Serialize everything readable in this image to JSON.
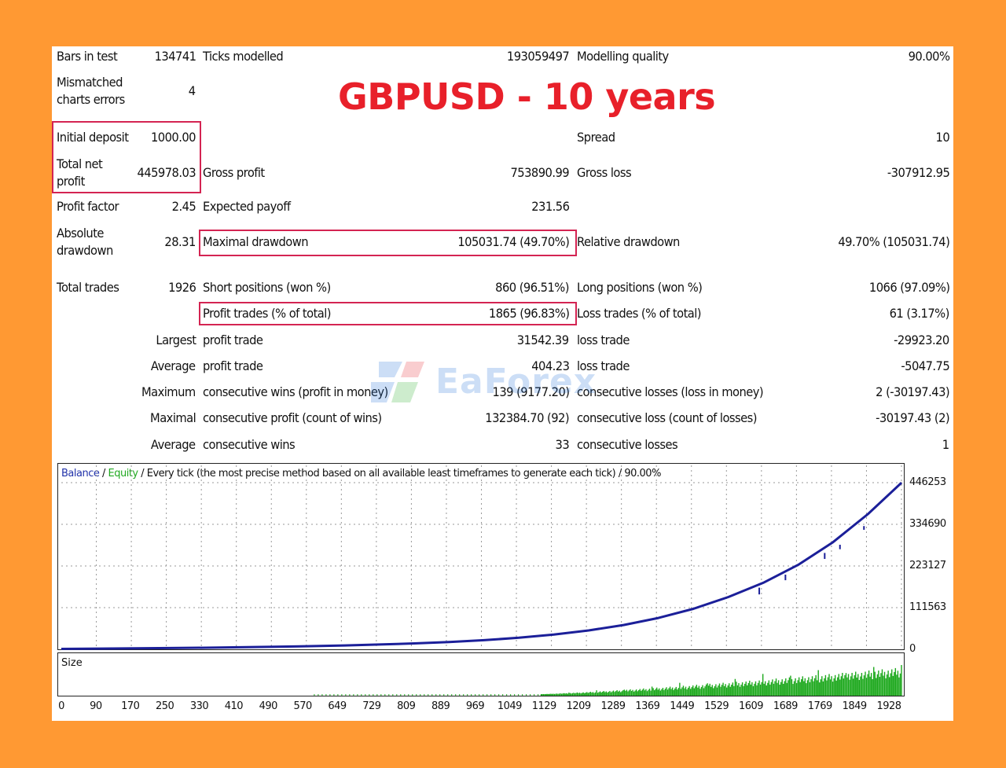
{
  "report": {
    "title": "GBPUSD - 10 years",
    "rows": [
      {
        "l1": "Bars in test",
        "v1": "134741",
        "l2": "Ticks modelled",
        "v2": "193059497",
        "l3": "Modelling quality",
        "v3": "90.00%"
      },
      {
        "l1a": "Mismatched",
        "l1b": "charts errors",
        "v1": "4"
      },
      {
        "l1": "Initial deposit",
        "v1": "1000.00",
        "l3": "Spread",
        "v3": "10"
      },
      {
        "l1a": "Total net",
        "l1b": "profit",
        "v1": "445978.03",
        "l2": "Gross profit",
        "v2": "753890.99",
        "l3": "Gross loss",
        "v3": "-307912.95"
      },
      {
        "l1": "Profit factor",
        "v1": "2.45",
        "l2": "Expected payoff",
        "v2": "231.56"
      },
      {
        "l1a": "Absolute",
        "l1b": "drawdown",
        "v1": "28.31",
        "l2": "Maximal drawdown",
        "v2": "105031.74 (49.70%)",
        "l3": "Relative drawdown",
        "v3": "49.70% (105031.74)"
      },
      {
        "l1": "Total trades",
        "v1": "1926",
        "l2": "Short positions (won %)",
        "v2": "860 (96.51%)",
        "l3": "Long positions (won %)",
        "v3": "1066 (97.09%)"
      },
      {
        "l2": "Profit trades (% of total)",
        "v2": "1865 (96.83%)",
        "l3": "Loss trades (% of total)",
        "v3": "61 (3.17%)"
      },
      {
        "v1": "Largest",
        "l2": "profit trade",
        "v2": "31542.39",
        "l3": "loss trade",
        "v3": "-29923.20"
      },
      {
        "v1": "Average",
        "l2": "profit trade",
        "v2": "404.23",
        "l3": "loss trade",
        "v3": "-5047.75"
      },
      {
        "v1": "Maximum",
        "l2": "consecutive wins (profit in money)",
        "v2": "139 (9177.20)",
        "l3": "consecutive losses (loss in money)",
        "v3": "2 (-30197.43)"
      },
      {
        "v1": "Maximal",
        "l2": "consecutive profit (count of wins)",
        "v2": "132384.70 (92)",
        "l3": "consecutive loss (count of losses)",
        "v3": "-30197.43 (2)"
      },
      {
        "v1": "Average",
        "l2": "consecutive wins",
        "v2": "33",
        "l3": "consecutive losses",
        "v3": "1"
      }
    ]
  },
  "watermark": {
    "text": "EaForex"
  },
  "chart_data": {
    "type": "line",
    "legend": {
      "balance": "Balance",
      "sep1": " / ",
      "equity": "Equity",
      "rest": " / Every tick (the most precise method based on all available least timeframes to generate each tick) / 90.00%"
    },
    "colors": {
      "balance": "#1B1F99",
      "equity": "#22AA22",
      "size": "#1CA81C",
      "grid": "#9A9A9A"
    },
    "y_ticks": [
      "446253",
      "334690",
      "223127",
      "111563",
      "0"
    ],
    "ylim": [
      0,
      446253
    ],
    "x_ticks": [
      "0",
      "90",
      "170",
      "250",
      "330",
      "410",
      "490",
      "570",
      "649",
      "729",
      "809",
      "889",
      "969",
      "1049",
      "1129",
      "1209",
      "1289",
      "1369",
      "1449",
      "1529",
      "1609",
      "1689",
      "1769",
      "1849",
      "1928"
    ],
    "xlim": [
      0,
      1926
    ],
    "size_label": "Size",
    "balance": {
      "x": [
        0,
        90,
        170,
        250,
        330,
        410,
        490,
        570,
        649,
        729,
        809,
        889,
        969,
        1049,
        1129,
        1209,
        1289,
        1369,
        1449,
        1529,
        1609,
        1689,
        1769,
        1849,
        1926
      ],
      "y": [
        1000,
        1800,
        2600,
        3400,
        4300,
        5400,
        6800,
        8400,
        10300,
        12800,
        15800,
        19500,
        24500,
        31000,
        39500,
        50500,
        65000,
        84000,
        108500,
        140000,
        178000,
        226000,
        287000,
        362000,
        446000
      ]
    },
    "equity_dips": [
      {
        "x": 1600,
        "y": 165000,
        "depth": 18000
      },
      {
        "x": 1660,
        "y": 200000,
        "depth": 15000
      },
      {
        "x": 1750,
        "y": 258000,
        "depth": 16000
      },
      {
        "x": 1785,
        "y": 280000,
        "depth": 12000
      },
      {
        "x": 1840,
        "y": 330000,
        "depth": 10000
      }
    ]
  }
}
